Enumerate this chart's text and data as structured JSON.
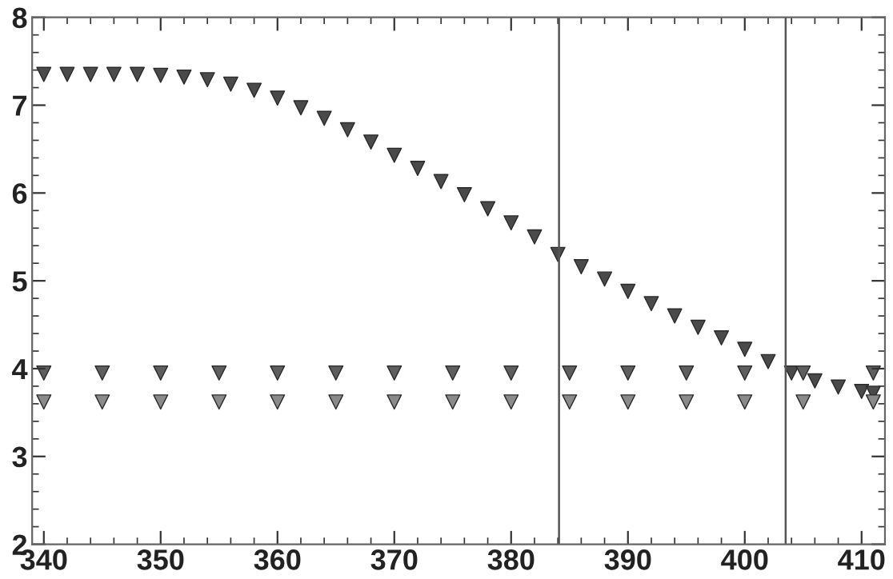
{
  "chart_data": {
    "type": "scatter",
    "marker": "triangle",
    "xlim": [
      339,
      412
    ],
    "ylim": [
      2,
      8
    ],
    "xticks": [
      340,
      350,
      360,
      370,
      380,
      390,
      400,
      410
    ],
    "yticks": [
      2,
      3,
      4,
      5,
      6,
      7,
      8
    ],
    "grid": false,
    "series": [
      {
        "color": "#4a4a4a",
        "x": [
          340,
          342,
          344,
          346,
          348,
          350,
          352,
          354,
          356,
          358,
          360,
          362,
          364,
          366,
          368,
          370,
          372,
          374,
          376,
          378,
          380,
          382,
          384,
          386,
          388,
          390,
          392,
          394,
          396,
          398,
          400,
          402,
          404,
          406,
          408,
          410,
          411
        ],
        "values": [
          7.35,
          7.35,
          7.35,
          7.35,
          7.35,
          7.34,
          7.32,
          7.29,
          7.24,
          7.17,
          7.08,
          6.97,
          6.85,
          6.72,
          6.58,
          6.43,
          6.28,
          6.13,
          5.98,
          5.82,
          5.66,
          5.5,
          5.3,
          5.16,
          5.02,
          4.88,
          4.74,
          4.6,
          4.47,
          4.35,
          4.22,
          4.08,
          3.95,
          3.86,
          3.79,
          3.74,
          3.72
        ]
      },
      {
        "color": "#5e5e5e",
        "x": [
          340,
          345,
          350,
          355,
          360,
          365,
          370,
          375,
          380,
          385,
          390,
          395,
          400,
          405,
          411
        ],
        "values": [
          3.95,
          3.95,
          3.95,
          3.95,
          3.95,
          3.95,
          3.95,
          3.95,
          3.95,
          3.95,
          3.95,
          3.95,
          3.95,
          3.95,
          3.95
        ]
      },
      {
        "color": "#8a8a8a",
        "x": [
          340,
          345,
          350,
          355,
          360,
          365,
          370,
          375,
          380,
          385,
          390,
          395,
          400,
          405,
          411
        ],
        "values": [
          3.62,
          3.62,
          3.62,
          3.62,
          3.62,
          3.62,
          3.62,
          3.62,
          3.62,
          3.62,
          3.62,
          3.62,
          3.62,
          3.62,
          3.62
        ]
      }
    ],
    "ref_lines": [
      {
        "axis": "x",
        "value": 384.1,
        "color": "#555555"
      },
      {
        "axis": "x",
        "value": 403.5,
        "color": "#555555"
      }
    ]
  }
}
